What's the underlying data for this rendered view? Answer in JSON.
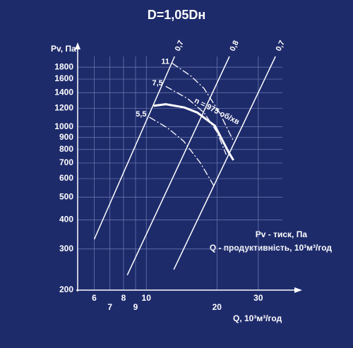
{
  "chart_data": {
    "type": "line",
    "title": "D=1,05Dн",
    "y_label": "Pv, Па",
    "x_label": "Q, 10³м³/год",
    "annotations": [
      "Pv - тиск, Па",
      "Q - продуктивність, 10³м³/год"
    ],
    "log_x": true,
    "log_y": true,
    "grid": true,
    "color": "#ffffff",
    "xlim": [
      5.1,
      38
    ],
    "xticks": [
      6,
      7,
      8,
      9,
      10,
      20,
      30
    ],
    "ylim": [
      200,
      2000
    ],
    "yticks": [
      200,
      300,
      400,
      500,
      600,
      700,
      800,
      900,
      1000,
      1200,
      1400,
      1600,
      1800
    ],
    "series": [
      {
        "name": "n = 975 об/хв",
        "color": "#ffffff",
        "dash": "solid",
        "width": 3,
        "x": [
          10.75,
          12.1,
          14.5,
          16.5,
          19.6,
          22.4,
          23.5
        ],
        "values": [
          1230,
          1250,
          1210,
          1150,
          1010,
          780,
          720
        ]
      },
      {
        "name": "11",
        "color": "#ffffff",
        "dash": "dashdot",
        "width": 1.3,
        "x": [
          12.9,
          15.5,
          17.6,
          20.5,
          23.5
        ],
        "values": [
          1870,
          1650,
          1460,
          1150,
          870
        ]
      },
      {
        "name": "7,5",
        "color": "#ffffff",
        "dash": "dashdot",
        "width": 1.3,
        "x": [
          12.1,
          15,
          17.6,
          20,
          21.9
        ],
        "values": [
          1490,
          1320,
          1150,
          950,
          760
        ]
      },
      {
        "name": "5,5",
        "color": "#ffffff",
        "dash": "dashdot",
        "width": 1.3,
        "x": [
          10.3,
          12.3,
          14.4,
          17,
          19.6
        ],
        "values": [
          1100,
          990,
          870,
          700,
          550
        ]
      },
      {
        "name": "0,7",
        "color": "#ffffff",
        "dash": "solid",
        "width": 1.5,
        "x": [
          6,
          13.2
        ],
        "values": [
          330,
          2000
        ]
      },
      {
        "name": "0,8",
        "color": "#ffffff",
        "dash": "solid",
        "width": 1.5,
        "x": [
          8.3,
          22.6
        ],
        "values": [
          232,
          2000
        ]
      },
      {
        "name": "0,7",
        "color": "#ffffff",
        "dash": "solid",
        "width": 1.5,
        "x": [
          13.1,
          35.5
        ],
        "values": [
          245,
          2000
        ]
      }
    ]
  }
}
